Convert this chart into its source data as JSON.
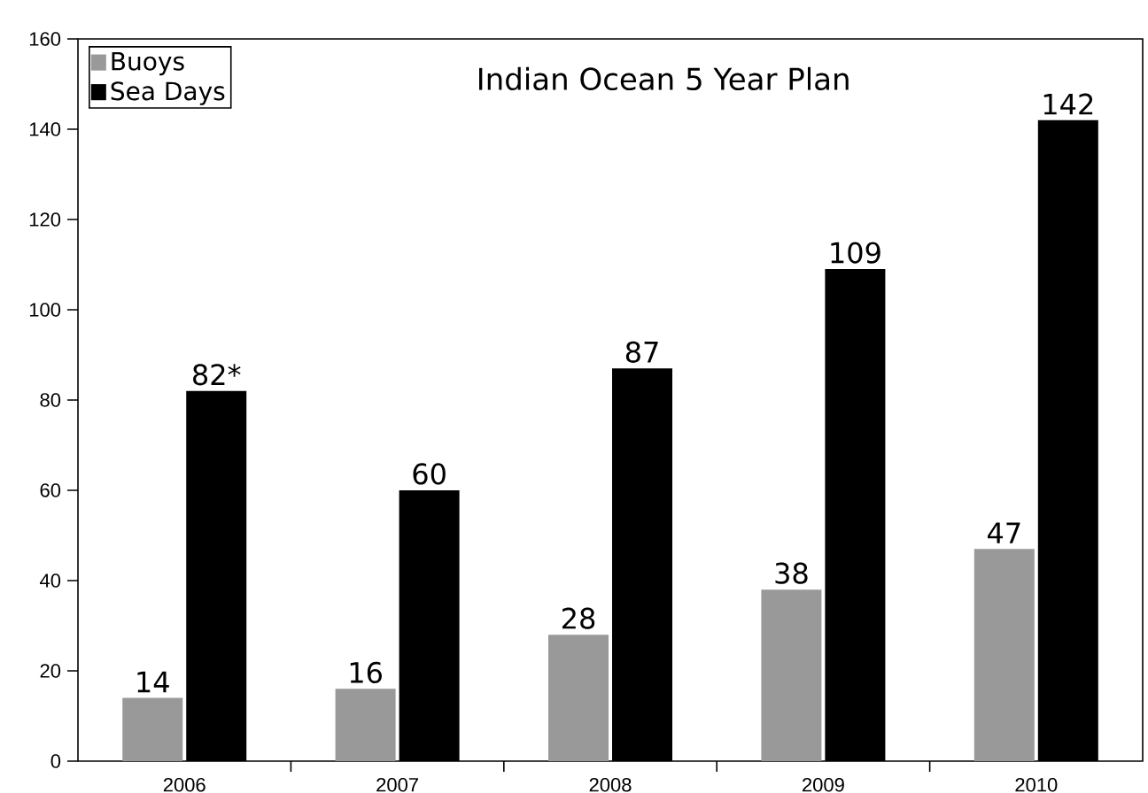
{
  "chart_data": {
    "type": "bar",
    "title": "Indian Ocean 5 Year Plan",
    "categories": [
      "2006",
      "2007",
      "2008",
      "2009",
      "2010"
    ],
    "series": [
      {
        "name": "Buoys",
        "color": "#999999",
        "values": [
          14,
          16,
          28,
          38,
          47
        ],
        "value_labels": [
          "14",
          "16",
          "28",
          "38",
          "47"
        ]
      },
      {
        "name": "Sea Days",
        "color": "#000000",
        "values": [
          82,
          60,
          87,
          109,
          142
        ],
        "value_labels": [
          "82*",
          "60",
          "87",
          "109",
          "142"
        ]
      }
    ],
    "ylim": [
      0,
      160
    ],
    "yticks": [
      0,
      20,
      40,
      60,
      80,
      100,
      120,
      140,
      160
    ],
    "legend": "top left",
    "grid": false
  }
}
